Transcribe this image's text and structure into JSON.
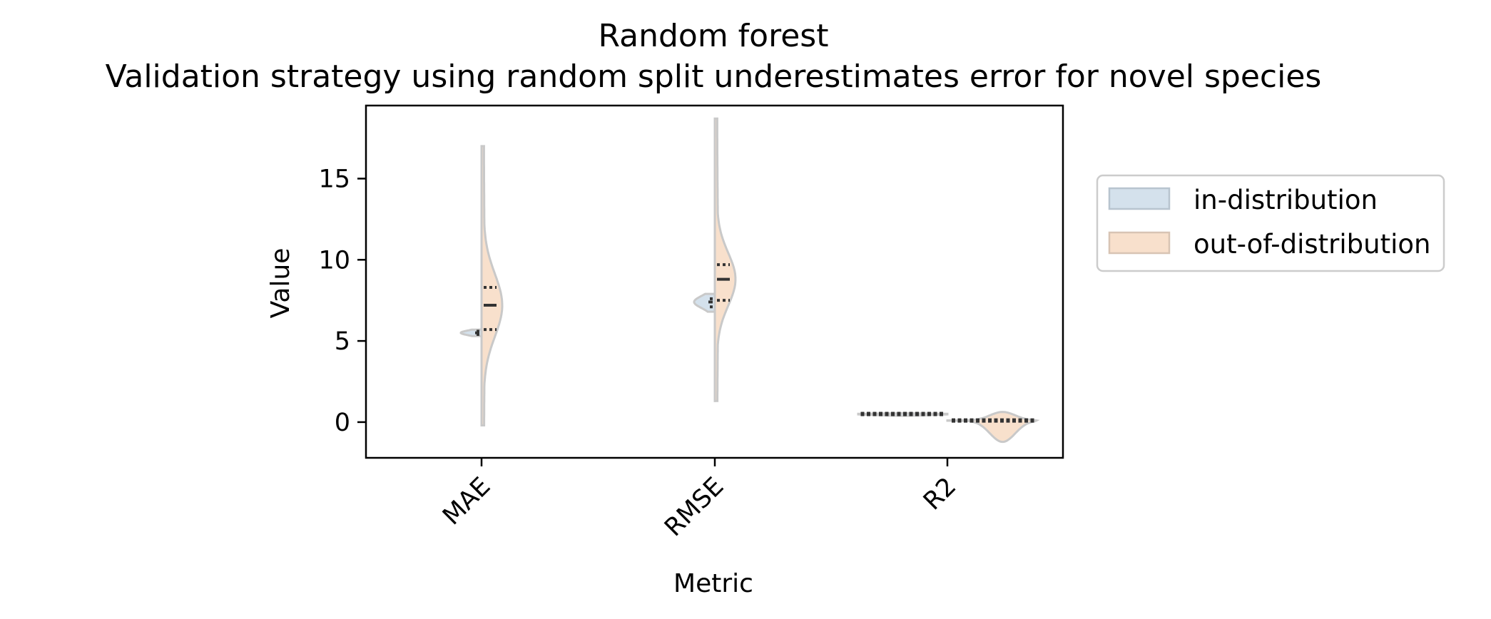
{
  "chart_data": {
    "type": "violin",
    "title": "Random forest",
    "subtitle": "Validation strategy using random split underestimates error for novel species",
    "xlabel": "Metric",
    "ylabel": "Value",
    "categories": [
      "MAE",
      "RMSE",
      "R2"
    ],
    "ylim": [
      -2.2,
      19.5
    ],
    "yticks": [
      0,
      5,
      10,
      15
    ],
    "grid": false,
    "legend_position": "outside-right",
    "colors": {
      "in": "#d4e1ec",
      "out": "#f8e0cc",
      "outline": "#c9c9c9"
    },
    "series": [
      {
        "name": "in-distribution",
        "side": "left",
        "violins": [
          {
            "category": "MAE",
            "min": 5.3,
            "q1": 5.4,
            "median": 5.5,
            "q3": 5.6,
            "max": 5.7
          },
          {
            "category": "RMSE",
            "min": 6.8,
            "q1": 7.1,
            "median": 7.4,
            "q3": 7.6,
            "max": 7.9
          },
          {
            "category": "R2",
            "min": 0.45,
            "q1": 0.48,
            "median": 0.5,
            "q3": 0.52,
            "max": 0.55
          }
        ]
      },
      {
        "name": "out-of-distribution",
        "side": "right",
        "violins": [
          {
            "category": "MAE",
            "min": -0.2,
            "q1": 5.7,
            "median": 7.2,
            "q3": 8.3,
            "max": 17.0
          },
          {
            "category": "RMSE",
            "min": 1.3,
            "q1": 7.5,
            "median": 8.8,
            "q3": 9.7,
            "max": 18.7
          },
          {
            "category": "R2",
            "min": -1.2,
            "q1": -0.1,
            "median": 0.1,
            "q3": 0.3,
            "max": 0.9
          }
        ]
      }
    ]
  }
}
